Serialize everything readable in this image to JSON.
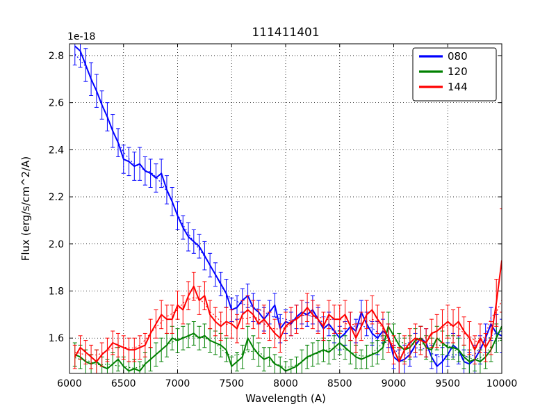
{
  "figure": {
    "title": "111411401",
    "offset_text": "1e-18",
    "xlabel": "Wavelength (A)",
    "ylabel": "Flux (erg/s/cm^2/A)"
  },
  "legend": {
    "position": "upper right",
    "entries": [
      {
        "label": "080",
        "color": "#0000ff"
      },
      {
        "label": "120",
        "color": "#008000"
      },
      {
        "label": "144",
        "color": "#ff0000"
      }
    ]
  },
  "chart_data": {
    "type": "line",
    "title": "111411401",
    "xlabel": "Wavelength (A)",
    "ylabel": "Flux (erg/s/cm^2/A)",
    "y_scale_factor": "1e-18",
    "xlim": [
      6000,
      10000
    ],
    "ylim": [
      1.45,
      2.85
    ],
    "xticks": [
      6000,
      6500,
      7000,
      7500,
      8000,
      8500,
      9000,
      9500,
      10000
    ],
    "yticks": [
      1.6,
      1.8,
      2.0,
      2.2,
      2.4,
      2.6,
      2.8
    ],
    "grid": true,
    "grid_style": "dotted",
    "legend_position": "upper right",
    "x_start": 6050,
    "x_step": 50,
    "series": [
      {
        "name": "080",
        "color": "#0000ff",
        "values": [
          2.84,
          2.82,
          2.76,
          2.7,
          2.65,
          2.59,
          2.54,
          2.48,
          2.43,
          2.36,
          2.35,
          2.33,
          2.34,
          2.31,
          2.3,
          2.28,
          2.3,
          2.23,
          2.18,
          2.12,
          2.07,
          2.03,
          2.01,
          1.99,
          1.95,
          1.91,
          1.87,
          1.83,
          1.79,
          1.72,
          1.73,
          1.76,
          1.78,
          1.73,
          1.71,
          1.68,
          1.71,
          1.74,
          1.64,
          1.67,
          1.66,
          1.69,
          1.71,
          1.7,
          1.72,
          1.68,
          1.64,
          1.66,
          1.63,
          1.6,
          1.62,
          1.65,
          1.63,
          1.71,
          1.66,
          1.62,
          1.6,
          1.63,
          1.61,
          1.52,
          1.5,
          1.51,
          1.53,
          1.57,
          1.6,
          1.58,
          1.52,
          1.48,
          1.5,
          1.53,
          1.57,
          1.55,
          1.5,
          1.49,
          1.51,
          1.55,
          1.6,
          1.66,
          1.62,
          1.61
        ],
        "errors": [
          0.08,
          0.07,
          0.07,
          0.07,
          0.07,
          0.06,
          0.06,
          0.07,
          0.06,
          0.06,
          0.06,
          0.06,
          0.07,
          0.06,
          0.06,
          0.06,
          0.06,
          0.06,
          0.06,
          0.06,
          0.05,
          0.06,
          0.05,
          0.05,
          0.06,
          0.05,
          0.05,
          0.05,
          0.06,
          0.05,
          0.05,
          0.05,
          0.05,
          0.06,
          0.05,
          0.05,
          0.05,
          0.05,
          0.06,
          0.05,
          0.05,
          0.05,
          0.05,
          0.05,
          0.06,
          0.05,
          0.05,
          0.05,
          0.05,
          0.05,
          0.05,
          0.06,
          0.05,
          0.05,
          0.05,
          0.05,
          0.07,
          0.05,
          0.05,
          0.05,
          0.05,
          0.06,
          0.05,
          0.05,
          0.05,
          0.06,
          0.05,
          0.05,
          0.06,
          0.05,
          0.05,
          0.06,
          0.05,
          0.05,
          0.06,
          0.06,
          0.06,
          0.07,
          0.08,
          0.07
        ]
      },
      {
        "name": "120",
        "color": "#008000",
        "values": [
          1.53,
          1.52,
          1.5,
          1.49,
          1.5,
          1.48,
          1.47,
          1.49,
          1.51,
          1.48,
          1.46,
          1.47,
          1.46,
          1.49,
          1.51,
          1.53,
          1.55,
          1.57,
          1.6,
          1.59,
          1.6,
          1.61,
          1.62,
          1.6,
          1.61,
          1.59,
          1.58,
          1.57,
          1.55,
          1.48,
          1.5,
          1.52,
          1.6,
          1.56,
          1.53,
          1.51,
          1.52,
          1.49,
          1.48,
          1.46,
          1.47,
          1.48,
          1.5,
          1.52,
          1.53,
          1.54,
          1.55,
          1.54,
          1.56,
          1.58,
          1.56,
          1.54,
          1.52,
          1.51,
          1.52,
          1.53,
          1.54,
          1.56,
          1.65,
          1.61,
          1.57,
          1.55,
          1.56,
          1.59,
          1.6,
          1.56,
          1.55,
          1.6,
          1.58,
          1.56,
          1.56,
          1.55,
          1.52,
          1.5,
          1.51,
          1.5,
          1.52,
          1.55,
          1.6,
          1.65
        ],
        "errors": [
          0.05,
          0.05,
          0.05,
          0.04,
          0.05,
          0.04,
          0.04,
          0.05,
          0.05,
          0.04,
          0.04,
          0.04,
          0.04,
          0.05,
          0.05,
          0.05,
          0.05,
          0.05,
          0.05,
          0.05,
          0.05,
          0.05,
          0.05,
          0.05,
          0.05,
          0.05,
          0.05,
          0.05,
          0.05,
          0.04,
          0.04,
          0.05,
          0.05,
          0.05,
          0.05,
          0.05,
          0.04,
          0.04,
          0.04,
          0.04,
          0.04,
          0.04,
          0.05,
          0.05,
          0.05,
          0.05,
          0.05,
          0.05,
          0.05,
          0.05,
          0.05,
          0.05,
          0.05,
          0.04,
          0.05,
          0.05,
          0.05,
          0.05,
          0.06,
          0.05,
          0.05,
          0.05,
          0.05,
          0.05,
          0.05,
          0.05,
          0.05,
          0.05,
          0.05,
          0.05,
          0.05,
          0.05,
          0.05,
          0.05,
          0.05,
          0.05,
          0.05,
          0.05,
          0.06,
          0.06
        ]
      },
      {
        "name": "144",
        "color": "#ff0000",
        "values": [
          1.52,
          1.56,
          1.54,
          1.52,
          1.5,
          1.53,
          1.55,
          1.58,
          1.57,
          1.56,
          1.55,
          1.55,
          1.56,
          1.57,
          1.62,
          1.66,
          1.7,
          1.68,
          1.68,
          1.74,
          1.72,
          1.78,
          1.82,
          1.76,
          1.78,
          1.7,
          1.67,
          1.65,
          1.67,
          1.66,
          1.64,
          1.7,
          1.72,
          1.7,
          1.66,
          1.68,
          1.65,
          1.62,
          1.6,
          1.65,
          1.67,
          1.68,
          1.7,
          1.73,
          1.7,
          1.68,
          1.65,
          1.7,
          1.68,
          1.68,
          1.7,
          1.65,
          1.6,
          1.65,
          1.7,
          1.72,
          1.68,
          1.65,
          1.6,
          1.55,
          1.5,
          1.55,
          1.58,
          1.6,
          1.59,
          1.58,
          1.62,
          1.63,
          1.65,
          1.67,
          1.65,
          1.67,
          1.63,
          1.6,
          1.55,
          1.6,
          1.56,
          1.6,
          1.75,
          1.93
        ],
        "errors": [
          0.05,
          0.05,
          0.05,
          0.05,
          0.05,
          0.05,
          0.05,
          0.05,
          0.05,
          0.05,
          0.05,
          0.05,
          0.05,
          0.05,
          0.06,
          0.06,
          0.06,
          0.06,
          0.06,
          0.06,
          0.06,
          0.06,
          0.06,
          0.06,
          0.06,
          0.06,
          0.06,
          0.06,
          0.06,
          0.06,
          0.06,
          0.06,
          0.06,
          0.06,
          0.06,
          0.06,
          0.06,
          0.06,
          0.06,
          0.06,
          0.06,
          0.06,
          0.06,
          0.06,
          0.06,
          0.06,
          0.06,
          0.06,
          0.06,
          0.06,
          0.06,
          0.06,
          0.06,
          0.06,
          0.06,
          0.06,
          0.06,
          0.06,
          0.06,
          0.06,
          0.06,
          0.06,
          0.06,
          0.06,
          0.06,
          0.06,
          0.06,
          0.07,
          0.07,
          0.07,
          0.07,
          0.06,
          0.06,
          0.07,
          0.06,
          0.06,
          0.06,
          0.07,
          0.1,
          0.22
        ]
      }
    ]
  }
}
